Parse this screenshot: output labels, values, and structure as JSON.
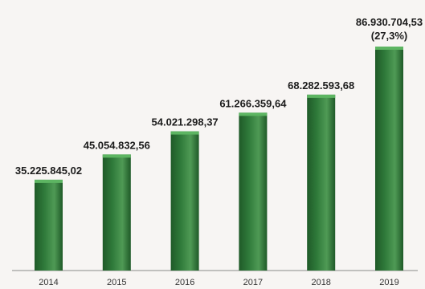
{
  "chart_data": {
    "type": "bar",
    "categories": [
      "2014",
      "2015",
      "2016",
      "2017",
      "2018",
      "2019"
    ],
    "values": [
      35225845.02,
      45054832.56,
      54021298.37,
      61266359.64,
      68282593.68,
      86930704.53
    ],
    "data_labels": [
      "35.225.845,02",
      "45.054.832,56",
      "54.021.298,37",
      "61.266.359,64",
      "68.282.593,68",
      "86.930.704,53"
    ],
    "extra_annotation": {
      "index": 5,
      "text": "(27,3%)"
    },
    "title": "",
    "xlabel": "",
    "ylabel": "",
    "ylim": [
      0,
      100000000
    ],
    "grid": false,
    "legend": "none",
    "colors": {
      "bar": "#2f7a3a",
      "bar_dark": "#1f5a28",
      "bar_light": "#4f9a55",
      "bar_cap": "#5db562",
      "axis": "#8a8a8a",
      "background": "#f7f5f3"
    }
  }
}
